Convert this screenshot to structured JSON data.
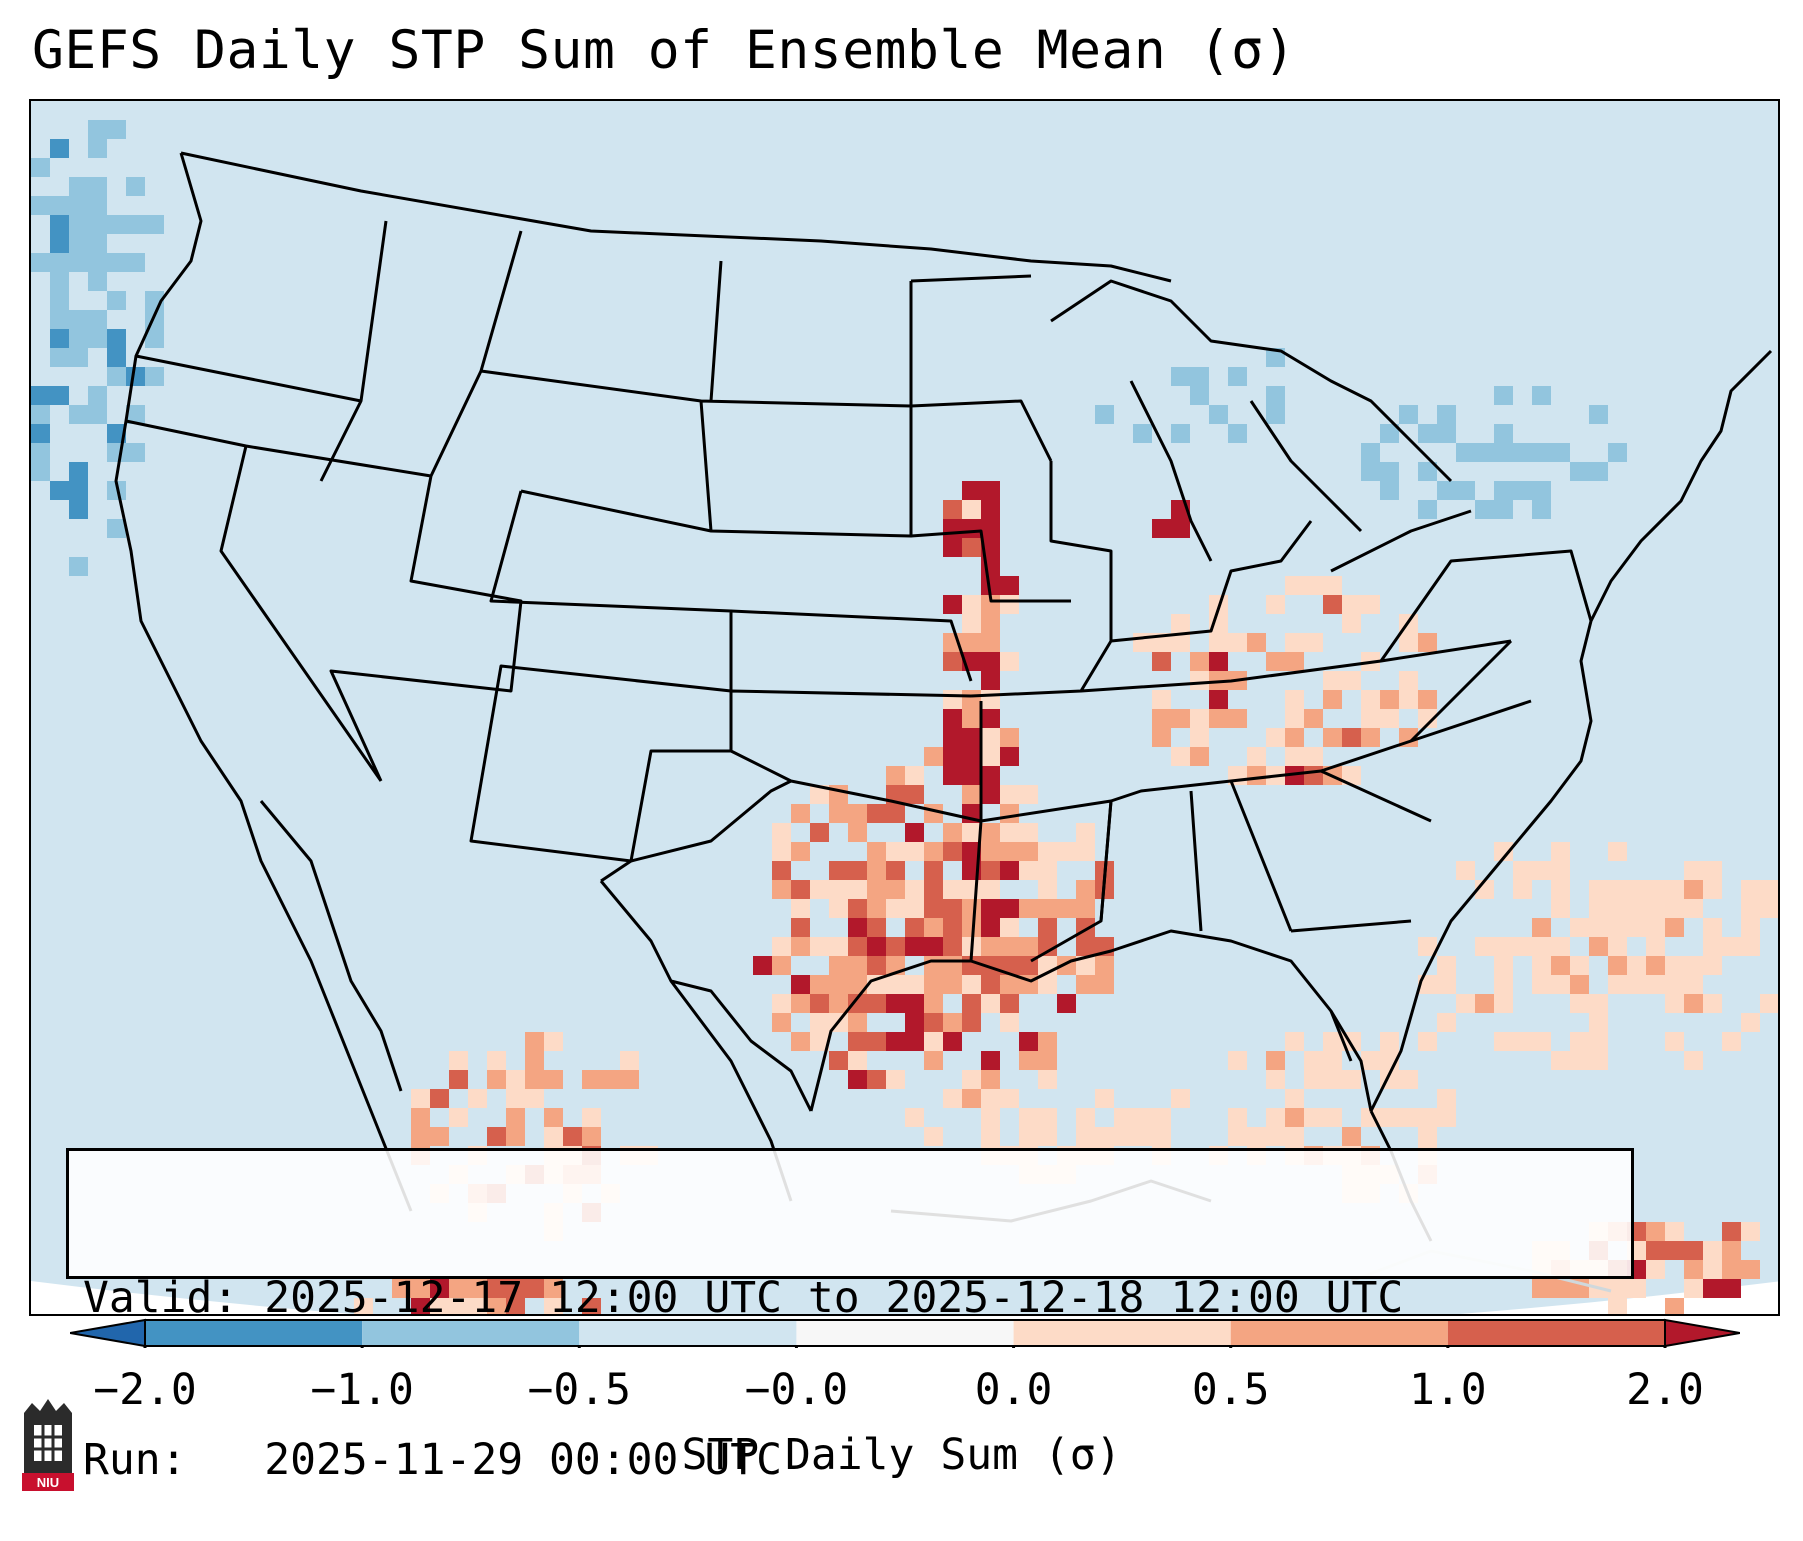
{
  "title": "GEFS Daily STP Sum of Ensemble Mean (σ)",
  "info": {
    "valid_label": "Valid:",
    "valid_value": "2025-12-17 12:00 UTC to 2025-12-18 12:00 UTC",
    "run_label": "Run:",
    "run_value": "2025-11-29 00:00 UTC"
  },
  "colorbar": {
    "label": "STP Daily Sum (σ)",
    "ticks": [
      "−2.0",
      "−1.0",
      "−0.5",
      "−0.0",
      "0.0",
      "0.5",
      "1.0",
      "2.0"
    ],
    "bins": [
      {
        "from": -2.0,
        "to": -1.0,
        "color": "#4393c3"
      },
      {
        "from": -1.0,
        "to": -0.5,
        "color": "#92c5de"
      },
      {
        "from": -0.5,
        "to": -0.0,
        "color": "#d1e5f0"
      },
      {
        "from": -0.0,
        "to": 0.0,
        "color": "#f7f7f7"
      },
      {
        "from": 0.0,
        "to": 0.5,
        "color": "#fddbc7"
      },
      {
        "from": 0.5,
        "to": 1.0,
        "color": "#f4a582"
      },
      {
        "from": 1.0,
        "to": 2.0,
        "color": "#d6604d"
      }
    ],
    "under_color": "#2166ac",
    "over_color": "#b2182b"
  },
  "colors": {
    "background_field": "#d1e5f0",
    "outline": "#000000"
  },
  "logo": {
    "text": "NIU",
    "icon": "university-tower-icon"
  }
}
